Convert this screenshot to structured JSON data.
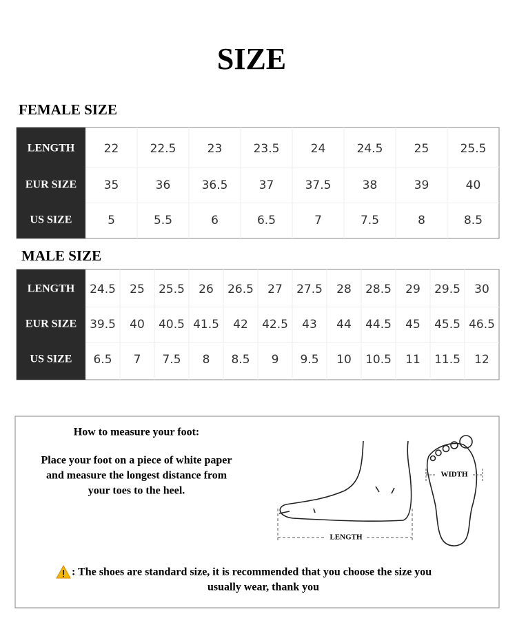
{
  "header": {
    "title": "SIZE"
  },
  "female": {
    "heading": "FEMALE SIZE",
    "rows": [
      {
        "label": "LENGTH",
        "values": [
          22,
          22.5,
          23,
          23.5,
          24,
          24.5,
          25,
          25.5
        ]
      },
      {
        "label": "EUR SIZE",
        "values": [
          35,
          36,
          36.5,
          37,
          37.5,
          38,
          39,
          40
        ]
      },
      {
        "label": "US SIZE",
        "values": [
          5,
          5.5,
          6,
          6.5,
          7,
          7.5,
          8,
          8.5
        ]
      }
    ]
  },
  "male": {
    "heading": "MALE SIZE",
    "rows": [
      {
        "label": "LENGTH",
        "values": [
          24.5,
          25,
          25.5,
          26,
          26.5,
          27,
          27.5,
          28,
          28.5,
          29,
          29.5,
          30
        ]
      },
      {
        "label": "EUR SIZE",
        "values": [
          39.5,
          40,
          40.5,
          41.5,
          42,
          42.5,
          43,
          44,
          44.5,
          45,
          45.5,
          46.5
        ]
      },
      {
        "label": "US SIZE",
        "values": [
          6.5,
          7,
          7.5,
          8,
          8.5,
          9,
          9.5,
          10,
          10.5,
          11,
          11.5,
          12
        ]
      }
    ]
  },
  "measure": {
    "heading": "How to measure your foot:",
    "instructions": [
      "Place your foot on a piece of white paper",
      "and measure the longest distance from",
      "your toes to the heel."
    ],
    "width_label": "WIDTH",
    "length_label": "LENGTH",
    "note": [
      ": The shoes are standard size, it is recommended that you choose the size you",
      "usually wear, thank you"
    ]
  }
}
